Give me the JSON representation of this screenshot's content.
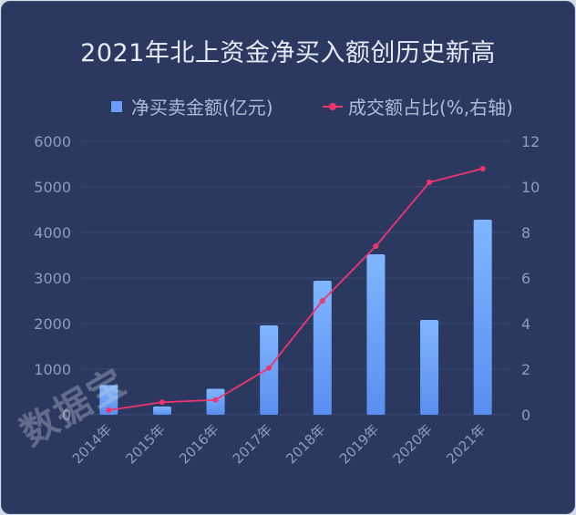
{
  "chart_data": {
    "type": "bar+line",
    "title": "2021年北上资金净买入额创历史新高",
    "categories": [
      "2014年",
      "2015年",
      "2016年",
      "2017年",
      "2018年",
      "2019年",
      "2020年",
      "2021年"
    ],
    "series": [
      {
        "name": "净买卖金额(亿元)",
        "type": "bar",
        "axis": "left",
        "values": [
          650,
          180,
          570,
          1960,
          2940,
          3520,
          2080,
          4280
        ]
      },
      {
        "name": "成交额占比(%,右轴)",
        "type": "line",
        "axis": "right",
        "values": [
          0.2,
          0.55,
          0.65,
          2.05,
          5.0,
          7.4,
          10.2,
          10.8
        ]
      }
    ],
    "y_left": {
      "min": 0,
      "max": 6000,
      "ticks": [
        "0",
        "1000",
        "2000",
        "3000",
        "4000",
        "5000",
        "6000"
      ]
    },
    "y_right": {
      "min": 0,
      "max": 12,
      "ticks": [
        "0",
        "2",
        "4",
        "6",
        "8",
        "10",
        "12"
      ]
    },
    "grid": true,
    "legend_position": "top-right",
    "colors": {
      "background": "#2b3961",
      "bar_top": "#7fb6ff",
      "bar_bottom": "#5a8ef0",
      "line": "#f0356e",
      "grid": "#3b4a74",
      "axis_text": "#8f9bbd"
    }
  },
  "watermark": "数据宝"
}
